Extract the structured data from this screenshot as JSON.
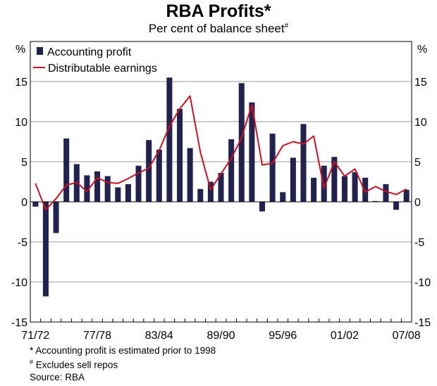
{
  "header": {
    "title": "RBA Profits*",
    "subtitle": "Per cent of balance sheet",
    "subtitle_mark": "#"
  },
  "axes": {
    "unit_left": "%",
    "unit_right": "%"
  },
  "notes": {
    "note1": "* Accounting profit is estimated prior to 1998",
    "note2_mark": "#",
    "note2": " Excludes sell repos",
    "source": "Source: RBA"
  },
  "colors": {
    "bars": "#22224e",
    "line": "#cc1122",
    "grid": "#999999"
  },
  "chart_data": {
    "type": "bar",
    "title": "RBA Profits*",
    "subtitle": "Per cent of balance sheet#",
    "ylabel": "%",
    "ylim": [
      -15,
      20
    ],
    "yticks": [
      -15,
      -10,
      -5,
      0,
      5,
      10,
      15
    ],
    "grid": true,
    "legend_position": "top-left",
    "x_tick_labels": [
      "71/72",
      "77/78",
      "83/84",
      "89/90",
      "95/96",
      "01/02",
      "07/08"
    ],
    "categories": [
      "71/72",
      "72/73",
      "73/74",
      "74/75",
      "75/76",
      "76/77",
      "77/78",
      "78/79",
      "79/80",
      "80/81",
      "81/82",
      "82/83",
      "83/84",
      "84/85",
      "85/86",
      "86/87",
      "87/88",
      "88/89",
      "89/90",
      "90/91",
      "91/92",
      "92/93",
      "93/94",
      "94/95",
      "95/96",
      "96/97",
      "97/98",
      "98/99",
      "99/00",
      "00/01",
      "01/02",
      "02/03",
      "03/04",
      "04/05",
      "05/06",
      "06/07",
      "07/08"
    ],
    "series": [
      {
        "name": "Accounting profit",
        "type": "bar",
        "values": [
          -0.6,
          -11.8,
          -3.9,
          7.9,
          4.7,
          3.3,
          3.8,
          3.2,
          1.8,
          2.2,
          4.5,
          7.7,
          6.5,
          15.5,
          11.6,
          6.7,
          1.6,
          2.5,
          3.6,
          7.8,
          14.8,
          12.4,
          -1.2,
          8.5,
          1.2,
          5.5,
          9.7,
          3.0,
          4.5,
          5.6,
          3.2,
          3.7,
          3.0,
          0.1,
          2.2,
          -1.0,
          1.5
        ]
      },
      {
        "name": "Distributable earnings",
        "type": "line",
        "values": [
          2.3,
          -1.0,
          0.4,
          2.1,
          2.4,
          1.3,
          3.0,
          2.4,
          2.3,
          2.9,
          3.6,
          4.2,
          6.4,
          9.4,
          11.6,
          13.2,
          6.2,
          1.5,
          3.5,
          5.4,
          8.0,
          12.1,
          4.6,
          4.8,
          7.0,
          7.5,
          7.2,
          8.2,
          1.7,
          5.0,
          3.2,
          4.1,
          1.2,
          1.9,
          1.3,
          0.9,
          1.6
        ]
      }
    ]
  }
}
